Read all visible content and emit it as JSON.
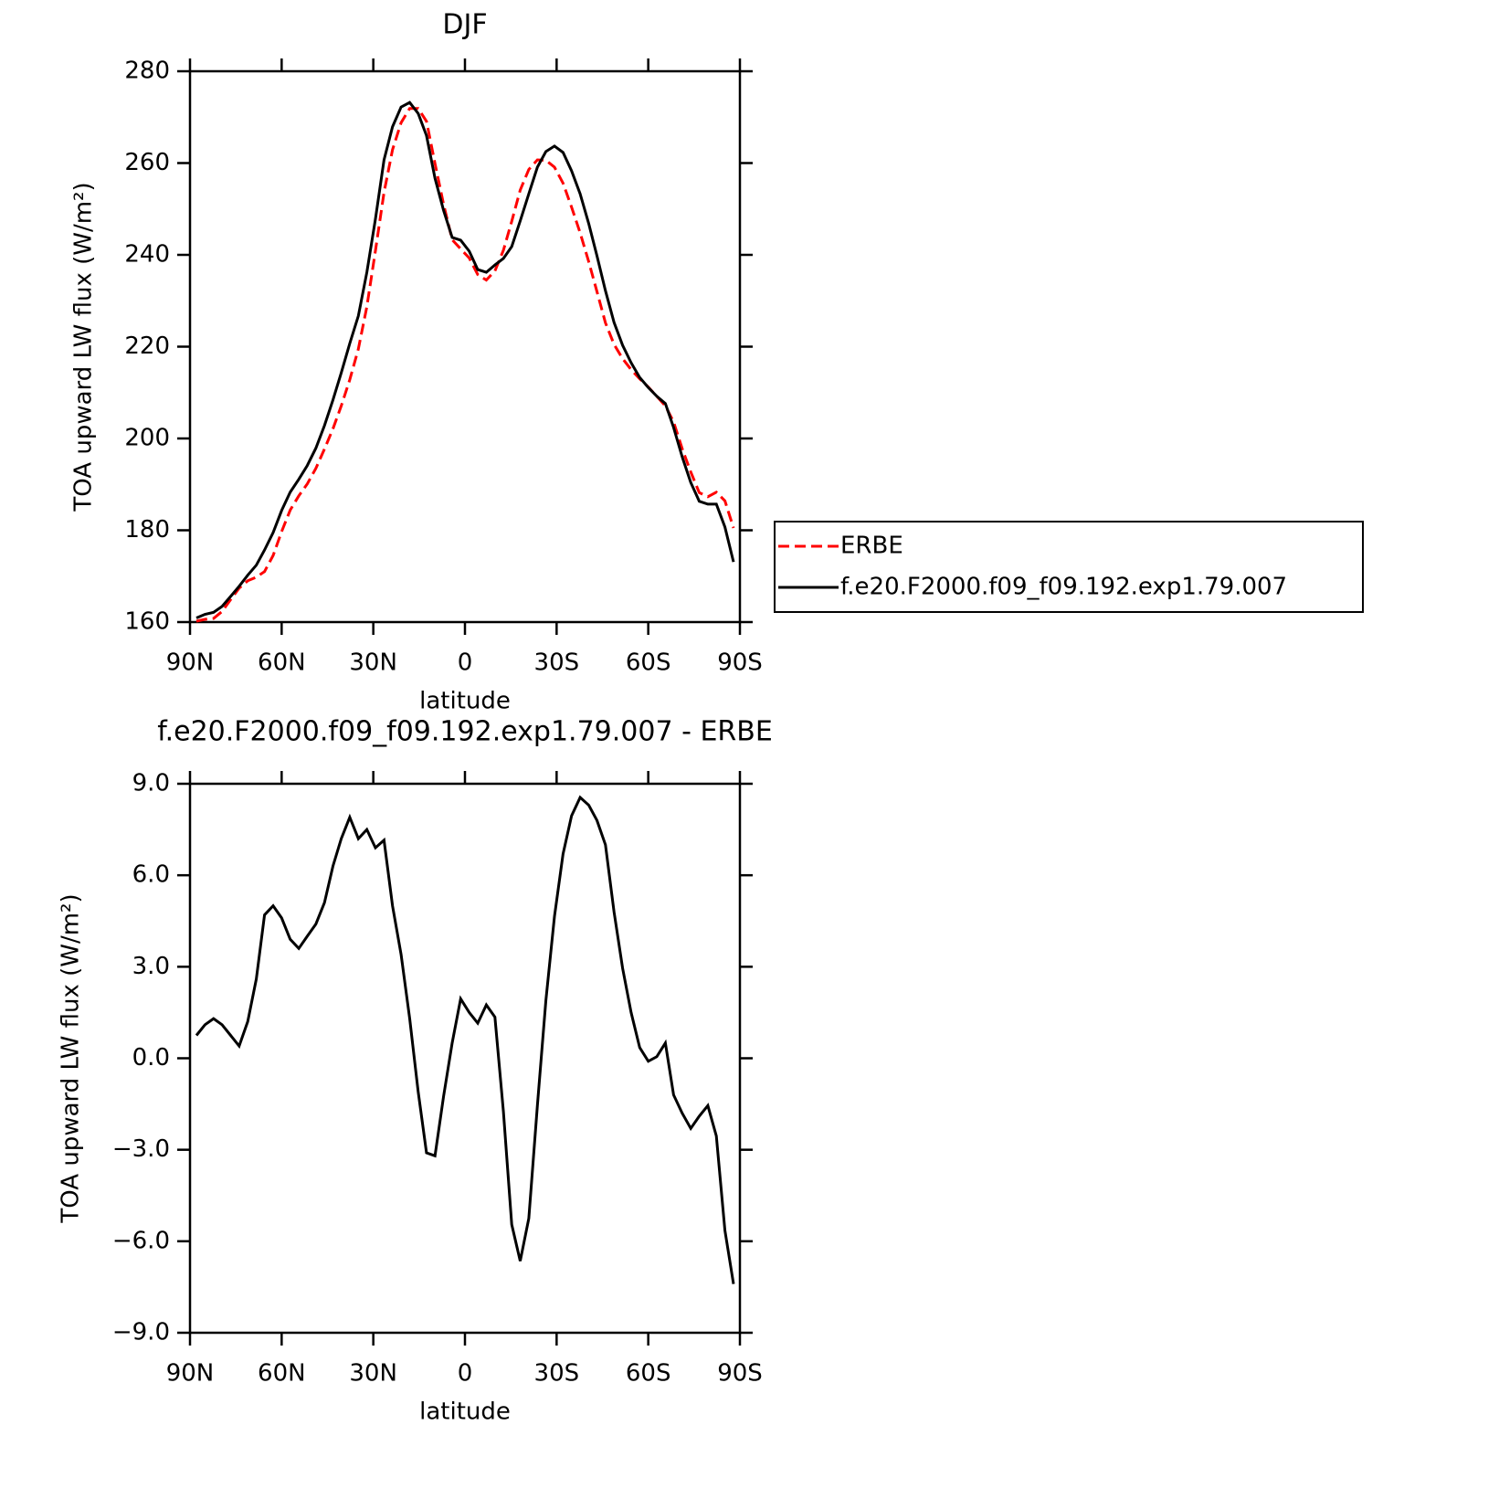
{
  "chart_data": [
    {
      "type": "line",
      "title": "DJF",
      "x_label": "latitude",
      "y_label": "TOA upward LW flux (W/m²)",
      "x": [
        87.9,
        85.1,
        82.3,
        79.5,
        76.7,
        73.9,
        71.1,
        68.3,
        65.6,
        62.8,
        60.0,
        57.2,
        54.4,
        51.6,
        48.8,
        46.0,
        43.2,
        40.5,
        37.7,
        34.9,
        32.1,
        29.3,
        26.5,
        23.7,
        20.9,
        18.1,
        15.3,
        12.6,
        9.8,
        7.0,
        4.2,
        1.4,
        -1.4,
        -4.2,
        -7.0,
        -9.8,
        -12.6,
        -15.3,
        -18.1,
        -20.9,
        -23.7,
        -26.5,
        -29.3,
        -32.1,
        -34.9,
        -37.7,
        -40.5,
        -43.2,
        -46.0,
        -48.8,
        -51.6,
        -54.4,
        -57.2,
        -60.0,
        -62.8,
        -65.6,
        -68.3,
        -71.1,
        -73.9,
        -76.7,
        -79.5,
        -82.3,
        -85.1,
        -87.9
      ],
      "series": [
        {
          "name": "ERBE",
          "color": "#ff0000",
          "line_style": "dashed",
          "values": [
            160.2,
            160.6,
            160.8,
            162.3,
            164.9,
            167.4,
            169.0,
            169.8,
            171.0,
            174.5,
            179.7,
            184.4,
            187.5,
            190.1,
            193.5,
            197.7,
            202.1,
            207.1,
            212.8,
            219.5,
            228.7,
            240.9,
            253.6,
            262.9,
            268.8,
            271.9,
            271.9,
            269.1,
            259.9,
            251.0,
            243.3,
            241.3,
            239.3,
            235.7,
            234.5,
            236.5,
            241.0,
            247.3,
            254.1,
            258.6,
            260.7,
            260.6,
            259.1,
            255.6,
            250.4,
            244.8,
            238.5,
            232.0,
            225.2,
            220.5,
            217.4,
            215.0,
            213.0,
            211.2,
            209.2,
            207.1,
            203.6,
            197.8,
            192.7,
            188.2,
            187.3,
            188.3,
            186.4,
            180.5
          ]
        },
        {
          "name": "f.e20.F2000.f09_f09.192.exp1.79.007",
          "color": "#000000",
          "line_style": "solid",
          "values": [
            160.9,
            161.7,
            162.1,
            163.4,
            165.6,
            167.8,
            170.2,
            172.4,
            175.7,
            179.5,
            184.3,
            188.3,
            191.1,
            194.1,
            197.9,
            202.8,
            208.4,
            214.3,
            220.7,
            226.7,
            236.2,
            247.8,
            260.7,
            267.9,
            272.2,
            273.2,
            270.8,
            266.0,
            256.7,
            249.7,
            243.8,
            243.2,
            240.8,
            236.8,
            236.2,
            237.8,
            239.2,
            241.8,
            247.4,
            253.3,
            259.1,
            262.5,
            263.7,
            262.3,
            258.3,
            253.3,
            246.8,
            239.8,
            232.2,
            225.3,
            220.3,
            216.5,
            213.3,
            211.1,
            209.2,
            207.6,
            202.4,
            196.0,
            190.4,
            186.3,
            185.7,
            185.7,
            180.7,
            173.1
          ]
        }
      ],
      "xlim": [
        90,
        -90
      ],
      "xticks": [
        {
          "value": 90,
          "label": "90N"
        },
        {
          "value": 60,
          "label": "60N"
        },
        {
          "value": 30,
          "label": "30N"
        },
        0,
        {
          "value": -30,
          "label": "30S"
        },
        {
          "value": -60,
          "label": "60S"
        },
        {
          "value": -90,
          "label": "90S"
        }
      ],
      "ylim": [
        160,
        280
      ],
      "yticks": [
        160,
        180,
        200,
        220,
        240,
        260,
        280
      ],
      "legend": "right"
    },
    {
      "type": "line",
      "title": "f.e20.F2000.f09_f09.192.exp1.79.007 - ERBE",
      "x_label": "latitude",
      "y_label": "TOA upward LW flux (W/m²)",
      "x": [
        87.9,
        85.1,
        82.3,
        79.5,
        76.7,
        73.9,
        71.1,
        68.3,
        65.6,
        62.8,
        60.0,
        57.2,
        54.4,
        51.6,
        48.8,
        46.0,
        43.2,
        40.5,
        37.7,
        34.9,
        32.1,
        29.3,
        26.5,
        23.7,
        20.9,
        18.1,
        15.3,
        12.6,
        9.8,
        7.0,
        4.2,
        1.4,
        -1.4,
        -4.2,
        -7.0,
        -9.8,
        -12.6,
        -15.3,
        -18.1,
        -20.9,
        -23.7,
        -26.5,
        -29.3,
        -32.1,
        -34.9,
        -37.7,
        -40.5,
        -43.2,
        -46.0,
        -48.8,
        -51.6,
        -54.4,
        -57.2,
        -60.0,
        -62.8,
        -65.6,
        -68.3,
        -71.1,
        -73.9,
        -76.7,
        -79.5,
        -82.3,
        -85.1,
        -87.9
      ],
      "values": [
        0.75,
        1.1,
        1.3,
        1.1,
        0.75,
        0.4,
        1.2,
        2.6,
        4.7,
        5.0,
        4.6,
        3.9,
        3.6,
        4.0,
        4.4,
        5.1,
        6.3,
        7.2,
        7.9,
        7.2,
        7.5,
        6.9,
        7.15,
        5.0,
        3.4,
        1.3,
        -1.1,
        -3.1,
        -3.2,
        -1.25,
        0.5,
        1.95,
        1.5,
        1.15,
        1.75,
        1.35,
        -1.75,
        -5.45,
        -6.65,
        -5.25,
        -1.55,
        1.9,
        4.65,
        6.7,
        7.95,
        8.55,
        8.3,
        7.8,
        7.0,
        4.8,
        2.95,
        1.5,
        0.35,
        -0.1,
        0.05,
        0.5,
        -1.2,
        -1.8,
        -2.3,
        -1.9,
        -1.55,
        -2.55,
        -5.65,
        -7.4
      ],
      "color": "#000000",
      "xlim": [
        90,
        -90
      ],
      "xticks": [
        {
          "value": 90,
          "label": "90N"
        },
        {
          "value": 60,
          "label": "60N"
        },
        {
          "value": 30,
          "label": "30N"
        },
        0,
        {
          "value": -30,
          "label": "30S"
        },
        {
          "value": -60,
          "label": "60S"
        },
        {
          "value": -90,
          "label": "90S"
        }
      ],
      "ylim": [
        -9,
        9
      ],
      "yticks": [
        {
          "value": -9,
          "label": "−9.0"
        },
        {
          "value": -6,
          "label": "−6.0"
        },
        {
          "value": -3,
          "label": "−3.0"
        },
        {
          "value": 0,
          "label": "0.0"
        },
        {
          "value": 3,
          "label": "3.0"
        },
        {
          "value": 6,
          "label": "6.0"
        },
        {
          "value": 9,
          "label": "9.0"
        }
      ]
    }
  ]
}
